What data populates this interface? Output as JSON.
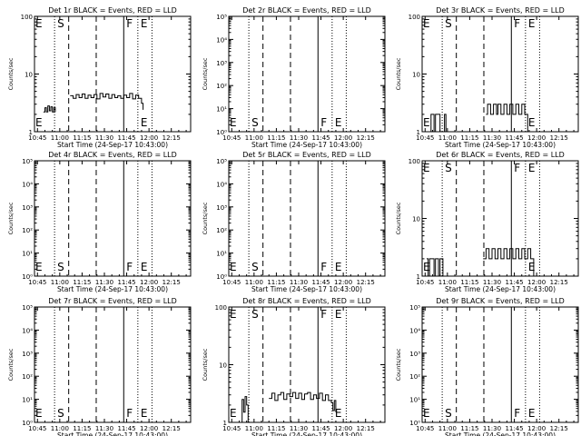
{
  "figure": {
    "x_tick_labels": [
      "10:45",
      "11:00",
      "11:15",
      "11:30",
      "11:45",
      "12:00",
      "12:15"
    ],
    "x_tick_minutes": [
      645,
      660,
      675,
      690,
      705,
      720,
      735
    ],
    "x_range_minutes": [
      643,
      748
    ],
    "xlabel": "Start Time (24-Sep-17 10:43:00)",
    "ylabel": "Counts/sec",
    "event_lines": [
      {
        "label": "S",
        "type": "dotted",
        "minute": 656.5
      },
      {
        "label": "",
        "type": "dashed",
        "minute": 666
      },
      {
        "label": "",
        "type": "dashed",
        "minute": 684.5
      },
      {
        "label": "F",
        "type": "solid",
        "minute": 703
      },
      {
        "label": "E",
        "type": "dotted",
        "minute": 712.5
      },
      {
        "label": "",
        "type": "dotted",
        "minute": 722
      }
    ],
    "series_colors": {
      "events": "#000000",
      "lld": "#ff0000"
    }
  },
  "chart_data": [
    {
      "type": "line",
      "title": "Det 1r BLACK = Events, RED = LLD",
      "yscale": "log",
      "ylim": [
        1,
        100
      ],
      "y_ticks": [
        {
          "v": 1,
          "t": "1"
        },
        {
          "v": 10,
          "t": "10"
        },
        {
          "v": 100,
          "t": "100"
        }
      ],
      "show_S": false,
      "show_F": false,
      "top_labels": [
        "E",
        "S",
        "F",
        "E"
      ],
      "series": [
        {
          "color": "#000000",
          "segments": [
            [
              [
                649,
                2.2
              ],
              [
                650,
                2.6
              ],
              [
                651,
                2.2
              ],
              [
                652,
                2.8
              ],
              [
                653,
                2.3
              ],
              [
                654,
                2.7
              ],
              [
                655,
                2.2
              ],
              [
                656,
                2.6
              ],
              [
                657,
                2.2
              ]
            ],
            [
              [
                667,
                4.2
              ],
              [
                669,
                3.8
              ],
              [
                671,
                4.4
              ],
              [
                673,
                3.9
              ],
              [
                675,
                4.5
              ],
              [
                677,
                3.8
              ],
              [
                679,
                4.3
              ],
              [
                681,
                3.9
              ],
              [
                683,
                4.4
              ],
              [
                685,
                3.7
              ],
              [
                687,
                4.6
              ],
              [
                689,
                4.0
              ],
              [
                691,
                4.5
              ],
              [
                693,
                3.8
              ],
              [
                695,
                4.4
              ],
              [
                697,
                3.9
              ],
              [
                699,
                4.2
              ],
              [
                701,
                3.8
              ],
              [
                703,
                4.3
              ],
              [
                705,
                3.9
              ],
              [
                707,
                4.6
              ],
              [
                709,
                3.7
              ],
              [
                711,
                4.3
              ],
              [
                713,
                3.8
              ],
              [
                715,
                3.1
              ],
              [
                716,
                2.4
              ]
            ]
          ]
        }
      ]
    },
    {
      "type": "line",
      "title": "Det 2r BLACK = Events, RED = LLD",
      "yscale": "log",
      "ylim": [
        1,
        100000
      ],
      "y_ticks": [
        {
          "v": 1,
          "t": "10⁰"
        },
        {
          "v": 10,
          "t": "10¹"
        },
        {
          "v": 100,
          "t": "10²"
        },
        {
          "v": 1000,
          "t": "10³"
        },
        {
          "v": 10000,
          "t": "10⁴"
        },
        {
          "v": 100000,
          "t": "10⁵"
        }
      ],
      "show_S": true,
      "show_F": true,
      "top_labels": [],
      "series": []
    },
    {
      "type": "line",
      "title": "Det 3r BLACK = Events, RED = LLD",
      "yscale": "log",
      "ylim": [
        1,
        100
      ],
      "y_ticks": [
        {
          "v": 1,
          "t": "1"
        },
        {
          "v": 10,
          "t": "10"
        },
        {
          "v": 100,
          "t": "100"
        }
      ],
      "show_S": false,
      "show_F": false,
      "top_labels": [
        "E",
        "S",
        "F",
        "E"
      ],
      "series": [
        {
          "color": "#000000",
          "segments": [
            [
              [
                646,
                1
              ],
              [
                648,
                1
              ],
              [
                649,
                2
              ],
              [
                650,
                2
              ],
              [
                651,
                1
              ],
              [
                652,
                2
              ],
              [
                654,
                2
              ],
              [
                655,
                1
              ],
              [
                657,
                1
              ],
              [
                658,
                2
              ],
              [
                659,
                1
              ]
            ],
            [
              [
                686,
                2
              ],
              [
                687,
                3
              ],
              [
                689,
                2
              ],
              [
                691,
                3
              ],
              [
                693,
                2
              ],
              [
                694,
                3
              ],
              [
                696,
                2
              ],
              [
                698,
                3
              ],
              [
                700,
                2
              ],
              [
                702,
                3
              ],
              [
                704,
                2
              ],
              [
                706,
                3
              ],
              [
                708,
                2
              ],
              [
                710,
                3
              ],
              [
                712,
                2
              ],
              [
                714,
                1
              ],
              [
                716,
                1
              ]
            ]
          ]
        }
      ]
    },
    {
      "type": "line",
      "title": "Det 4r BLACK = Events, RED = LLD",
      "yscale": "log",
      "ylim": [
        1,
        100000
      ],
      "y_ticks": [
        {
          "v": 1,
          "t": "10⁰"
        },
        {
          "v": 10,
          "t": "10¹"
        },
        {
          "v": 100,
          "t": "10²"
        },
        {
          "v": 1000,
          "t": "10³"
        },
        {
          "v": 10000,
          "t": "10⁴"
        },
        {
          "v": 100000,
          "t": "10⁵"
        }
      ],
      "show_S": true,
      "show_F": true,
      "top_labels": [],
      "series": []
    },
    {
      "type": "line",
      "title": "Det 5r BLACK = Events, RED = LLD",
      "yscale": "log",
      "ylim": [
        1,
        100000
      ],
      "y_ticks": [
        {
          "v": 1,
          "t": "10⁰"
        },
        {
          "v": 10,
          "t": "10¹"
        },
        {
          "v": 100,
          "t": "10²"
        },
        {
          "v": 1000,
          "t": "10³"
        },
        {
          "v": 10000,
          "t": "10⁴"
        },
        {
          "v": 100000,
          "t": "10⁵"
        }
      ],
      "show_S": true,
      "show_F": true,
      "top_labels": [],
      "series": []
    },
    {
      "type": "line",
      "title": "Det 6r BLACK = Events, RED = LLD",
      "yscale": "log",
      "ylim": [
        1,
        100
      ],
      "y_ticks": [
        {
          "v": 1,
          "t": "1"
        },
        {
          "v": 10,
          "t": "10"
        },
        {
          "v": 100,
          "t": "100"
        }
      ],
      "show_S": false,
      "show_F": false,
      "top_labels": [
        "E",
        "S",
        "F",
        "E"
      ],
      "series": [
        {
          "color": "#000000",
          "segments": [
            [
              [
                646,
                2
              ],
              [
                647,
                1
              ],
              [
                648,
                2
              ],
              [
                650,
                2
              ],
              [
                651,
                1
              ],
              [
                652,
                2
              ],
              [
                654,
                1
              ],
              [
                655,
                2
              ],
              [
                656,
                2
              ],
              [
                657,
                1
              ]
            ],
            [
              [
                684,
                2
              ],
              [
                686,
                3
              ],
              [
                688,
                2
              ],
              [
                690,
                3
              ],
              [
                692,
                2
              ],
              [
                694,
                3
              ],
              [
                696,
                2
              ],
              [
                698,
                3
              ],
              [
                700,
                2
              ],
              [
                702,
                3
              ],
              [
                704,
                2
              ],
              [
                706,
                3
              ],
              [
                708,
                2
              ],
              [
                710,
                3
              ],
              [
                712,
                2
              ],
              [
                714,
                3
              ],
              [
                716,
                2
              ],
              [
                718,
                1
              ],
              [
                720,
                1
              ]
            ]
          ]
        }
      ]
    },
    {
      "type": "line",
      "title": "Det 7r BLACK = Events, RED = LLD",
      "yscale": "log",
      "ylim": [
        1,
        100000
      ],
      "y_ticks": [
        {
          "v": 1,
          "t": "10⁰"
        },
        {
          "v": 10,
          "t": "10¹"
        },
        {
          "v": 100,
          "t": "10²"
        },
        {
          "v": 1000,
          "t": "10³"
        },
        {
          "v": 10000,
          "t": "10⁴"
        },
        {
          "v": 100000,
          "t": "10⁵"
        }
      ],
      "show_S": true,
      "show_F": true,
      "top_labels": [],
      "series": []
    },
    {
      "type": "line",
      "title": "Det 8r BLACK = Events, RED = LLD",
      "yscale": "log",
      "ylim": [
        1,
        100
      ],
      "y_ticks": [
        {
          "v": 1,
          "t": "1"
        },
        {
          "v": 10,
          "t": "10"
        },
        {
          "v": 100,
          "t": "100"
        }
      ],
      "show_S": false,
      "show_F": false,
      "top_labels": [
        "E",
        "S",
        "F",
        "E"
      ],
      "series": [
        {
          "color": "#000000",
          "segments": [
            [
              [
                651,
                1
              ],
              [
                652,
                2.5
              ],
              [
                653,
                1.5
              ],
              [
                654,
                2.8
              ],
              [
                655,
                2.0
              ],
              [
                656,
                1
              ]
            ],
            [
              [
                670,
                2.6
              ],
              [
                672,
                3.2
              ],
              [
                674,
                2.4
              ],
              [
                676,
                3.0
              ],
              [
                678,
                3.3
              ],
              [
                680,
                2.5
              ],
              [
                682,
                3.1
              ],
              [
                684,
                2.8
              ],
              [
                686,
                3.3
              ],
              [
                688,
                2.6
              ],
              [
                690,
                3.2
              ],
              [
                692,
                2.5
              ],
              [
                694,
                3.1
              ],
              [
                696,
                3.3
              ],
              [
                698,
                2.5
              ],
              [
                700,
                3.0
              ],
              [
                702,
                2.6
              ],
              [
                704,
                3.2
              ],
              [
                706,
                2.4
              ],
              [
                708,
                3.0
              ],
              [
                710,
                2.4
              ],
              [
                712,
                2.2
              ],
              [
                713,
                1.6
              ],
              [
                714,
                2.4
              ],
              [
                715,
                1.5
              ]
            ]
          ]
        }
      ]
    },
    {
      "type": "line",
      "title": "Det 9r BLACK = Events, RED = LLD",
      "yscale": "log",
      "ylim": [
        1,
        100000
      ],
      "y_ticks": [
        {
          "v": 1,
          "t": "10⁰"
        },
        {
          "v": 10,
          "t": "10¹"
        },
        {
          "v": 100,
          "t": "10²"
        },
        {
          "v": 1000,
          "t": "10³"
        },
        {
          "v": 10000,
          "t": "10⁴"
        },
        {
          "v": 100000,
          "t": "10⁵"
        }
      ],
      "show_S": true,
      "show_F": true,
      "top_labels": [],
      "series": []
    }
  ]
}
